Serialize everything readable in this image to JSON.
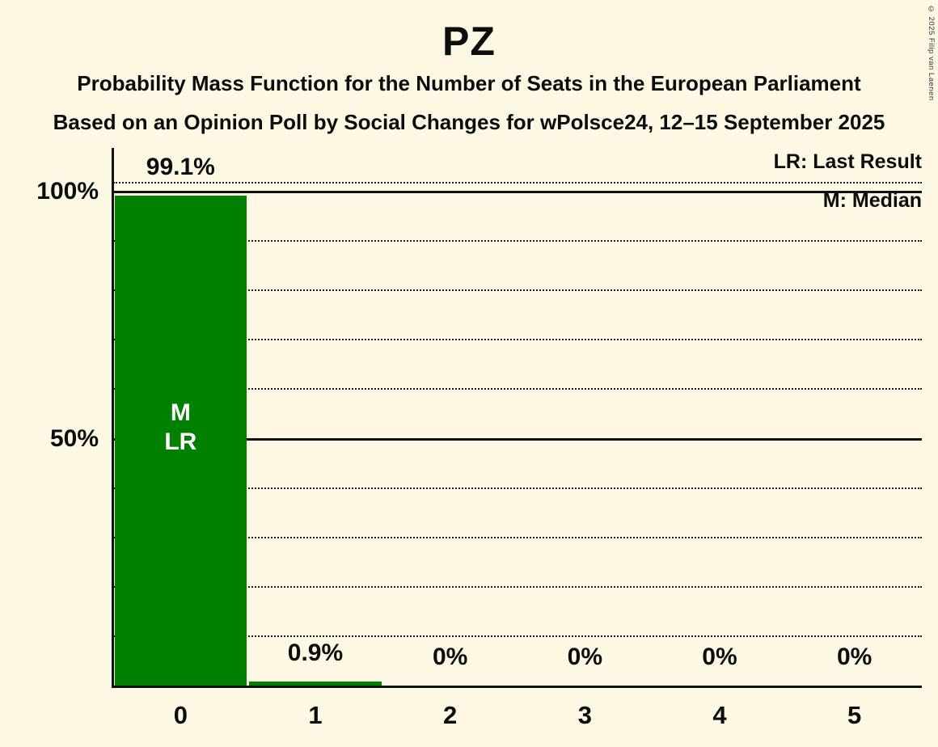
{
  "meta": {
    "copyright": "© 2025 Filip van Laenen"
  },
  "header": {
    "title": "PZ",
    "subtitle1": "Probability Mass Function for the Number of Seats in the European Parliament",
    "subtitle2": "Based on an Opinion Poll by Social Changes for wPolsce24, 12–15 September 2025"
  },
  "legend": {
    "lr": "LR: Last Result",
    "m": "M: Median"
  },
  "chart_data": {
    "type": "bar",
    "title": "PZ",
    "categories": [
      "0",
      "1",
      "2",
      "3",
      "4",
      "5"
    ],
    "values": [
      99.1,
      0.9,
      0,
      0,
      0,
      0
    ],
    "value_labels": [
      "99.1%",
      "0.9%",
      "0%",
      "0%",
      "0%",
      "0%"
    ],
    "bar_color": "#008000",
    "background_color": "#FCF8E3",
    "text_color": "#0d0d0d",
    "ylim": [
      0,
      100
    ],
    "y_ticks": [
      {
        "value": 100,
        "label": "100%"
      },
      {
        "value": 50,
        "label": "50%"
      }
    ],
    "gridlines": {
      "dotted": [
        10,
        20,
        30,
        40,
        60,
        70,
        80,
        90
      ],
      "solid": [
        50,
        100
      ]
    },
    "annotations": [
      {
        "bar_index": 0,
        "lines": [
          "M",
          "LR"
        ],
        "color": "#FFFFFF"
      }
    ],
    "legend_entries": [
      "LR: Last Result",
      "M: Median"
    ]
  }
}
